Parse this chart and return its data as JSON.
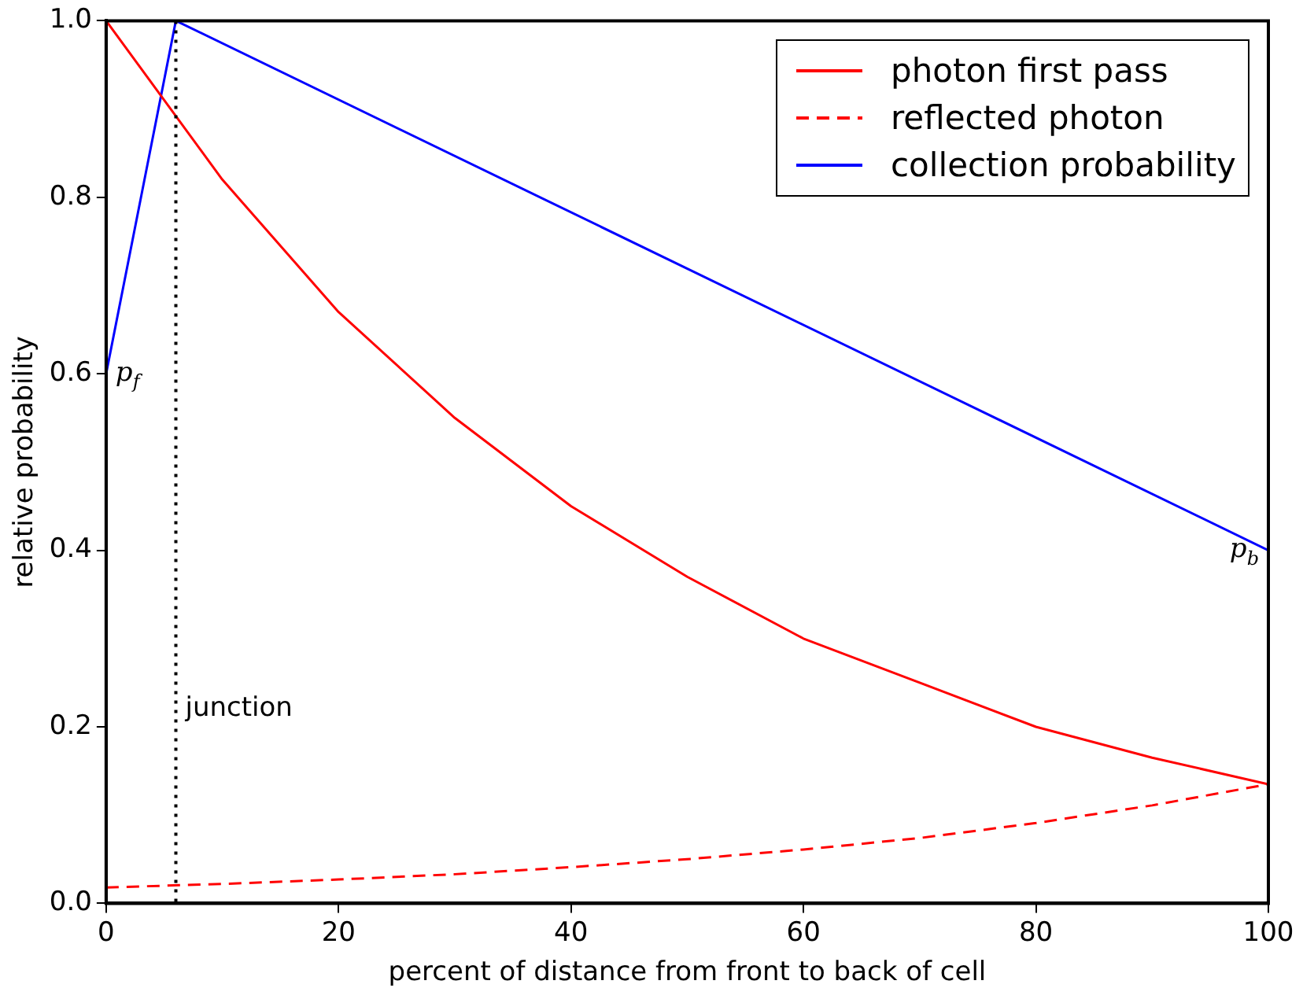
{
  "chart_data": {
    "type": "line",
    "xlabel": "percent of distance from front to back of cell",
    "ylabel": "relative probability",
    "xlim": [
      0,
      100
    ],
    "xticks": [
      0,
      20,
      40,
      60,
      80,
      100
    ],
    "ylim": [
      0,
      1
    ],
    "yticks": [
      {
        "value": 0,
        "label": "0.0"
      },
      0.2,
      0.4,
      0.6,
      0.8,
      {
        "value": 1,
        "label": "1.0"
      }
    ],
    "grid": false,
    "legend": "top right",
    "marker": "none",
    "series": [
      {
        "name": "photon first pass",
        "color": "#ff0000",
        "line_style": "solid",
        "x": [
          0,
          10,
          20,
          30,
          40,
          50,
          60,
          70,
          80,
          90,
          100
        ],
        "values": [
          1.0,
          0.82,
          0.67,
          0.55,
          0.45,
          0.37,
          0.3,
          0.25,
          0.2,
          0.165,
          0.135
        ]
      },
      {
        "name": "reflected photon",
        "color": "#ff0000",
        "line_style": "dashed",
        "x": [
          0,
          10,
          20,
          30,
          40,
          50,
          60,
          70,
          80,
          90,
          100
        ],
        "values": [
          0.018,
          0.022,
          0.027,
          0.033,
          0.041,
          0.05,
          0.061,
          0.074,
          0.091,
          0.111,
          0.135
        ]
      },
      {
        "name": "collection probability",
        "color": "#0000ff",
        "line_style": "solid",
        "x": [
          0,
          6,
          100
        ],
        "values": [
          0.6,
          1.0,
          0.4
        ]
      }
    ],
    "ref_lines": [
      {
        "axis": "x",
        "value": 6,
        "label": "junction",
        "color": "#000000",
        "line_style": "dotted"
      }
    ],
    "annotations": [
      {
        "text": "p$_{f}$",
        "x": 0,
        "y": 0.6
      },
      {
        "text": "p$_{b}$",
        "x": 100,
        "y": 0.4
      }
    ]
  }
}
